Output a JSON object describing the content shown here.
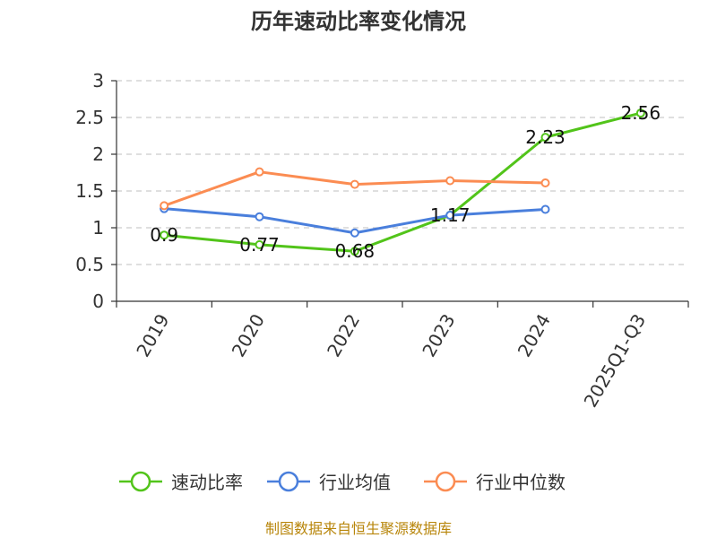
{
  "chart_data": {
    "type": "line",
    "title": "历年速动比率变化情况",
    "categories": [
      "2019",
      "2020",
      "2022",
      "2023",
      "2024",
      "2025Q1-Q3"
    ],
    "ylim": [
      0,
      3
    ],
    "yticks": [
      0,
      0.5,
      1,
      1.5,
      2,
      2.5,
      3
    ],
    "ytick_labels": [
      "0",
      "0.5",
      "1",
      "1.5",
      "2",
      "2.5",
      "3"
    ],
    "grid": true,
    "legend_position": "bottom",
    "series": [
      {
        "name": "速动比率",
        "color": "#52c41a",
        "values": [
          0.9,
          0.77,
          0.68,
          1.17,
          2.23,
          2.56
        ],
        "labels": [
          "0.9",
          "0.77",
          "0.68",
          "1.17",
          "2.23",
          "2.56"
        ]
      },
      {
        "name": "行业均值",
        "color": "#4a7fdc",
        "values": [
          1.26,
          1.15,
          0.93,
          1.17,
          1.25,
          null
        ]
      },
      {
        "name": "行业中位数",
        "color": "#fb8c52",
        "values": [
          1.3,
          1.76,
          1.59,
          1.64,
          1.61,
          null
        ]
      }
    ]
  },
  "footer": {
    "source": "制图数据来自恒生聚源数据库"
  }
}
